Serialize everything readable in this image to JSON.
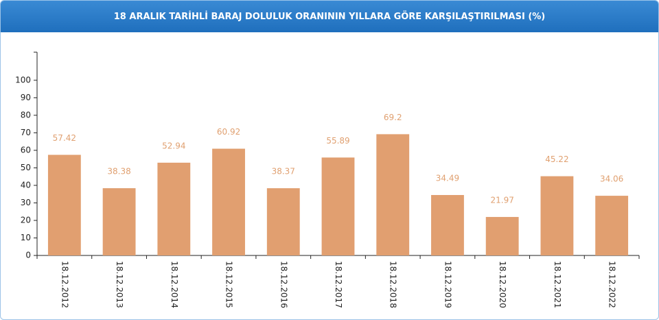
{
  "chart_data": {
    "type": "bar",
    "title": "18 ARALIK TARİHLİ BARAJ DOLULUK ORANININ YILLARA GÖRE KARŞILAŞTIRILMASI (%)",
    "categories": [
      "18.12.2012",
      "18.12.2013",
      "18.12.2014",
      "18.12.2015",
      "18.12.2016",
      "18.12.2017",
      "18.12.2018",
      "18.12.2019",
      "18.12.2020",
      "18.12.2021",
      "18.12.2022"
    ],
    "values": [
      57.42,
      38.38,
      52.94,
      60.92,
      38.37,
      55.89,
      69.2,
      34.49,
      21.97,
      45.22,
      34.06
    ],
    "color": "#e19f70",
    "ylim": [
      0,
      116
    ],
    "yticks": [
      0,
      10,
      20,
      30,
      40,
      50,
      60,
      70,
      80,
      90,
      100
    ],
    "grid": false
  }
}
